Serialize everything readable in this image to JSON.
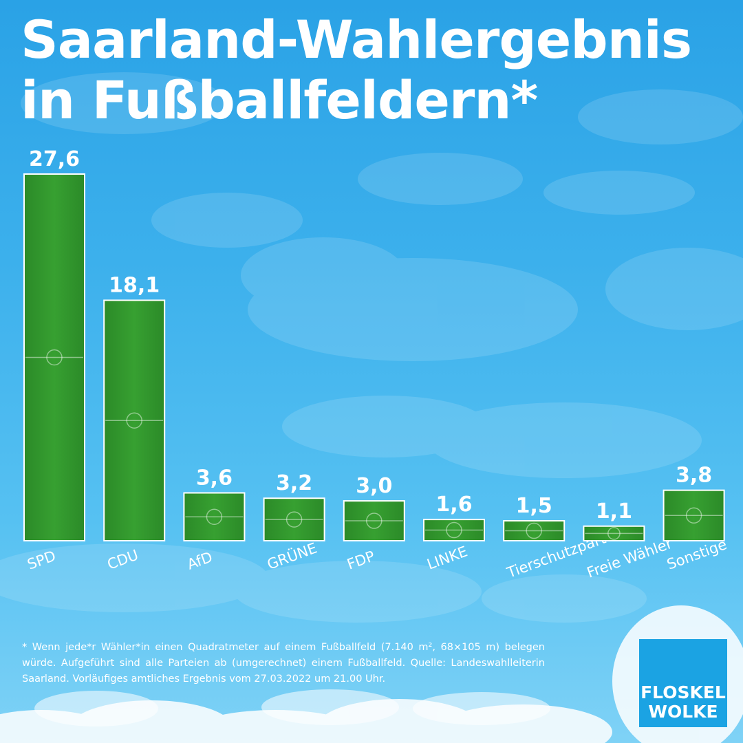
{
  "title_line1": "Saarland-Wahlergebnis",
  "title_line2": "in Fußballfeldern*",
  "chart_data": {
    "type": "bar",
    "categories": [
      "SPD",
      "CDU",
      "AfD",
      "GRÜNE",
      "FDP",
      "LINKE",
      "Tierschutzpartei",
      "Freie Wähler",
      "Sonstige"
    ],
    "values": [
      27.6,
      18.1,
      3.6,
      3.2,
      3.0,
      1.6,
      1.5,
      1.1,
      3.8
    ],
    "value_labels": [
      "27,6",
      "18,1",
      "3,6",
      "3,2",
      "3,0",
      "1,6",
      "1,5",
      "1,1",
      "3,8"
    ],
    "title": "Saarland-Wahlergebnis in Fußballfeldern*",
    "xlabel": "",
    "ylabel": "",
    "ylim": [
      0,
      27.6
    ],
    "grid": false,
    "bar_color": "#2e8b2a",
    "bar_outline": "#ffffff",
    "category_label_rotation": -20
  },
  "footnote": "* Wenn jede*r Wähler*in einen Quadratmeter auf einem Fußballfeld (7.140 m², 68×105 m) belegen würde. Aufgeführt sind alle Parteien ab (umgerechnet) einem Fußballfeld. Quelle: Landeswahlleiterin Saarland. Vorläufiges amtliches Ergebnis vom 27.03.2022 um 21.00 Uhr.",
  "logo": {
    "line1": "FLOSKEL",
    "line2": "WOLKE",
    "color": "#1ba3e3"
  },
  "colors": {
    "sky_top": "#2aa2e6",
    "sky_bottom": "#7fd2f6",
    "text": "#ffffff"
  }
}
